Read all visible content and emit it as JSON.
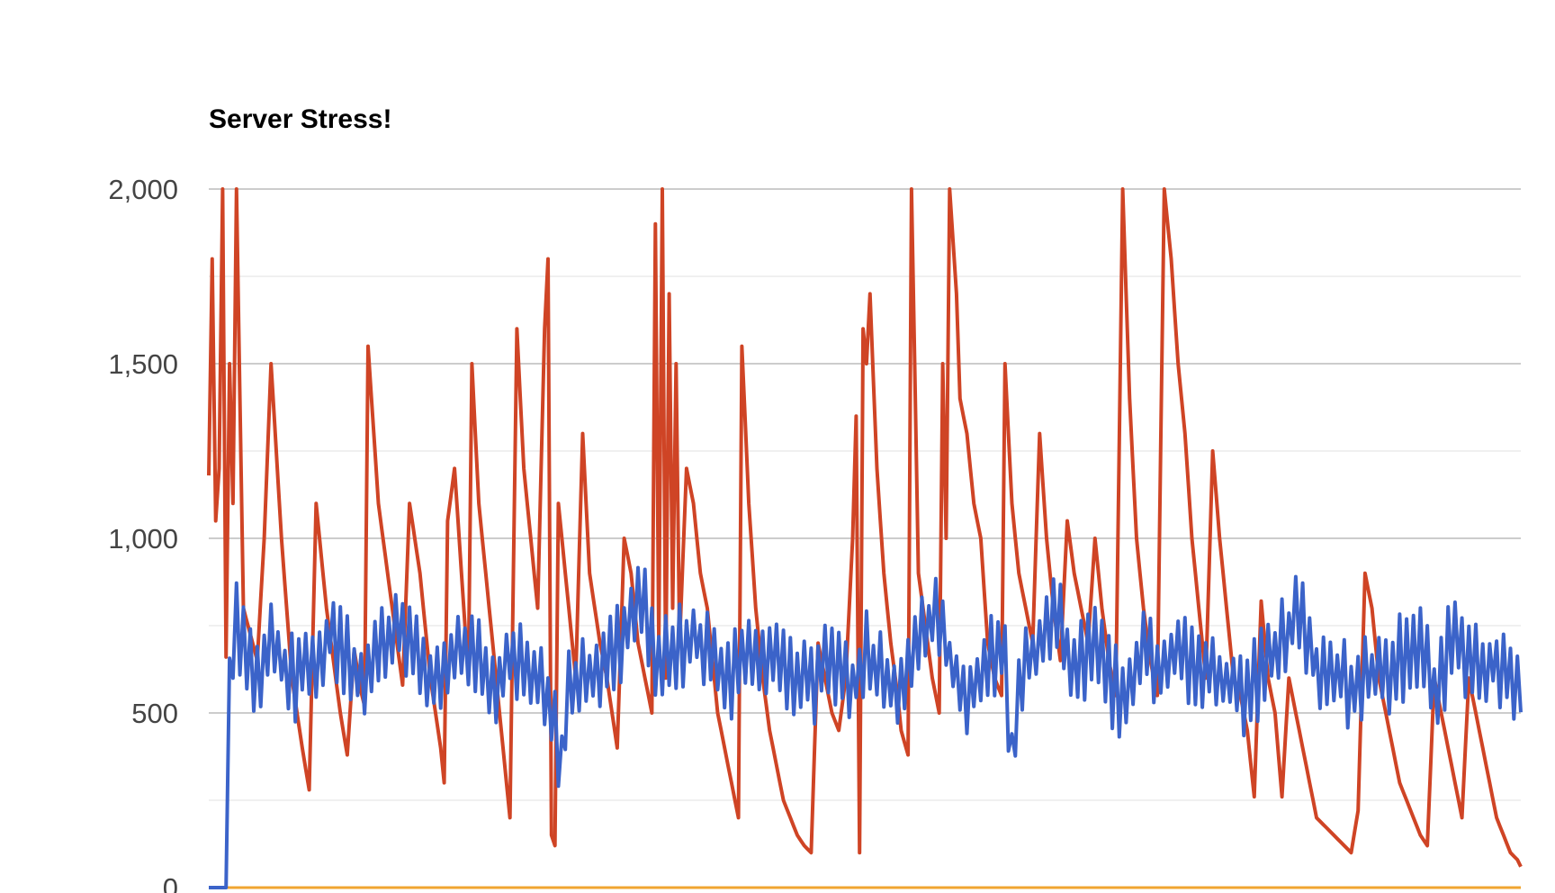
{
  "chart_data": {
    "type": "line",
    "title": "Server Stress!",
    "xlabel": "",
    "ylabel": "",
    "ylim": [
      0,
      2000
    ],
    "y_ticks": [
      "0",
      "500",
      "1,000",
      "1,500",
      "2,000"
    ],
    "y_tick_values": [
      0,
      500,
      1000,
      1500,
      2000
    ],
    "grid": true,
    "legend": "none",
    "x_count": 380,
    "series": [
      {
        "color": "#3b63c9",
        "keypoints": [
          [
            0,
            0
          ],
          [
            5,
            0
          ],
          [
            6,
            560
          ],
          [
            8,
            780
          ],
          [
            12,
            620
          ],
          [
            18,
            680
          ],
          [
            25,
            590
          ],
          [
            35,
            720
          ],
          [
            45,
            600
          ],
          [
            55,
            760
          ],
          [
            65,
            580
          ],
          [
            75,
            700
          ],
          [
            82,
            560
          ],
          [
            88,
            660
          ],
          [
            95,
            600
          ],
          [
            100,
            440
          ],
          [
            102,
            350
          ],
          [
            104,
            560
          ],
          [
            110,
            620
          ],
          [
            118,
            700
          ],
          [
            125,
            820
          ],
          [
            130,
            640
          ],
          [
            140,
            720
          ],
          [
            150,
            600
          ],
          [
            160,
            680
          ],
          [
            170,
            620
          ],
          [
            175,
            580
          ],
          [
            180,
            660
          ],
          [
            185,
            560
          ],
          [
            190,
            680
          ],
          [
            195,
            600
          ],
          [
            200,
            560
          ],
          [
            205,
            680
          ],
          [
            210,
            780
          ],
          [
            215,
            620
          ],
          [
            220,
            560
          ],
          [
            225,
            640
          ],
          [
            230,
            680
          ],
          [
            232,
            330
          ],
          [
            234,
            600
          ],
          [
            240,
            700
          ],
          [
            245,
            780
          ],
          [
            250,
            620
          ],
          [
            255,
            700
          ],
          [
            260,
            600
          ],
          [
            265,
            520
          ],
          [
            270,
            660
          ],
          [
            275,
            640
          ],
          [
            280,
            700
          ],
          [
            285,
            600
          ],
          [
            290,
            620
          ],
          [
            300,
            560
          ],
          [
            310,
            700
          ],
          [
            315,
            800
          ],
          [
            320,
            620
          ],
          [
            330,
            580
          ],
          [
            340,
            620
          ],
          [
            350,
            700
          ],
          [
            355,
            540
          ],
          [
            360,
            760
          ],
          [
            365,
            620
          ],
          [
            370,
            650
          ],
          [
            375,
            600
          ],
          [
            379,
            560
          ]
        ],
        "jitter": 110
      },
      {
        "color": "#cf4425",
        "keypoints": [
          [
            0,
            1180
          ],
          [
            1,
            1800
          ],
          [
            2,
            1050
          ],
          [
            3,
            1200
          ],
          [
            4,
            2000
          ],
          [
            5,
            660
          ],
          [
            6,
            1500
          ],
          [
            7,
            1100
          ],
          [
            8,
            2000
          ],
          [
            10,
            800
          ],
          [
            14,
            650
          ],
          [
            16,
            1000
          ],
          [
            18,
            1500
          ],
          [
            21,
            1000
          ],
          [
            24,
            600
          ],
          [
            27,
            400
          ],
          [
            29,
            280
          ],
          [
            31,
            1100
          ],
          [
            34,
            800
          ],
          [
            38,
            500
          ],
          [
            40,
            380
          ],
          [
            42,
            680
          ],
          [
            44,
            560
          ],
          [
            45,
            520
          ],
          [
            46,
            1550
          ],
          [
            49,
            1100
          ],
          [
            53,
            800
          ],
          [
            56,
            580
          ],
          [
            58,
            1100
          ],
          [
            61,
            900
          ],
          [
            64,
            600
          ],
          [
            67,
            400
          ],
          [
            68,
            300
          ],
          [
            69,
            1050
          ],
          [
            71,
            1200
          ],
          [
            73,
            900
          ],
          [
            75,
            600
          ],
          [
            76,
            1500
          ],
          [
            78,
            1100
          ],
          [
            81,
            800
          ],
          [
            84,
            500
          ],
          [
            86,
            300
          ],
          [
            87,
            200
          ],
          [
            89,
            1600
          ],
          [
            91,
            1200
          ],
          [
            93,
            1000
          ],
          [
            95,
            800
          ],
          [
            97,
            1600
          ],
          [
            98,
            1800
          ],
          [
            99,
            150
          ],
          [
            100,
            120
          ],
          [
            101,
            1100
          ],
          [
            103,
            900
          ],
          [
            106,
            600
          ],
          [
            108,
            1300
          ],
          [
            110,
            900
          ],
          [
            113,
            700
          ],
          [
            115,
            600
          ],
          [
            118,
            400
          ],
          [
            120,
            1000
          ],
          [
            122,
            900
          ],
          [
            124,
            700
          ],
          [
            126,
            600
          ],
          [
            128,
            500
          ],
          [
            129,
            1900
          ],
          [
            130,
            700
          ],
          [
            131,
            2000
          ],
          [
            132,
            600
          ],
          [
            133,
            1700
          ],
          [
            134,
            800
          ],
          [
            135,
            1500
          ],
          [
            136,
            700
          ],
          [
            138,
            1200
          ],
          [
            140,
            1100
          ],
          [
            142,
            900
          ],
          [
            144,
            800
          ],
          [
            145,
            700
          ],
          [
            147,
            500
          ],
          [
            149,
            400
          ],
          [
            151,
            300
          ],
          [
            153,
            200
          ],
          [
            154,
            1550
          ],
          [
            156,
            1100
          ],
          [
            158,
            800
          ],
          [
            160,
            600
          ],
          [
            162,
            450
          ],
          [
            164,
            350
          ],
          [
            166,
            250
          ],
          [
            168,
            200
          ],
          [
            170,
            150
          ],
          [
            172,
            120
          ],
          [
            174,
            100
          ],
          [
            176,
            700
          ],
          [
            178,
            600
          ],
          [
            180,
            500
          ],
          [
            182,
            450
          ],
          [
            184,
            600
          ],
          [
            186,
            1000
          ],
          [
            187,
            1350
          ],
          [
            188,
            100
          ],
          [
            189,
            1600
          ],
          [
            190,
            1500
          ],
          [
            191,
            1700
          ],
          [
            193,
            1200
          ],
          [
            195,
            900
          ],
          [
            197,
            700
          ],
          [
            199,
            550
          ],
          [
            200,
            450
          ],
          [
            202,
            380
          ],
          [
            203,
            2000
          ],
          [
            205,
            900
          ],
          [
            207,
            750
          ],
          [
            209,
            600
          ],
          [
            211,
            500
          ],
          [
            212,
            1500
          ],
          [
            213,
            1000
          ],
          [
            214,
            2000
          ],
          [
            216,
            1700
          ],
          [
            217,
            1400
          ],
          [
            219,
            1300
          ],
          [
            221,
            1100
          ],
          [
            223,
            1000
          ],
          [
            225,
            700
          ],
          [
            227,
            600
          ],
          [
            229,
            550
          ],
          [
            230,
            1500
          ],
          [
            232,
            1100
          ],
          [
            234,
            900
          ],
          [
            236,
            800
          ],
          [
            238,
            700
          ],
          [
            240,
            1300
          ],
          [
            242,
            1000
          ],
          [
            244,
            800
          ],
          [
            246,
            650
          ],
          [
            248,
            1050
          ],
          [
            250,
            900
          ],
          [
            252,
            800
          ],
          [
            254,
            700
          ],
          [
            256,
            1000
          ],
          [
            258,
            800
          ],
          [
            260,
            650
          ],
          [
            262,
            550
          ],
          [
            264,
            2000
          ],
          [
            266,
            1400
          ],
          [
            268,
            1000
          ],
          [
            270,
            800
          ],
          [
            272,
            650
          ],
          [
            274,
            550
          ],
          [
            276,
            2000
          ],
          [
            278,
            1800
          ],
          [
            280,
            1500
          ],
          [
            282,
            1300
          ],
          [
            284,
            1000
          ],
          [
            286,
            800
          ],
          [
            288,
            600
          ],
          [
            290,
            1250
          ],
          [
            292,
            1000
          ],
          [
            294,
            800
          ],
          [
            296,
            600
          ],
          [
            298,
            550
          ],
          [
            300,
            450
          ],
          [
            302,
            260
          ],
          [
            304,
            820
          ],
          [
            306,
            600
          ],
          [
            308,
            500
          ],
          [
            310,
            260
          ],
          [
            312,
            600
          ],
          [
            314,
            500
          ],
          [
            316,
            400
          ],
          [
            318,
            300
          ],
          [
            320,
            200
          ],
          [
            322,
            180
          ],
          [
            324,
            160
          ],
          [
            326,
            140
          ],
          [
            328,
            120
          ],
          [
            330,
            100
          ],
          [
            332,
            220
          ],
          [
            334,
            900
          ],
          [
            336,
            800
          ],
          [
            338,
            600
          ],
          [
            340,
            500
          ],
          [
            342,
            400
          ],
          [
            344,
            300
          ],
          [
            346,
            250
          ],
          [
            348,
            200
          ],
          [
            350,
            150
          ],
          [
            352,
            120
          ],
          [
            354,
            600
          ],
          [
            356,
            500
          ],
          [
            358,
            400
          ],
          [
            360,
            300
          ],
          [
            362,
            200
          ],
          [
            364,
            600
          ],
          [
            366,
            500
          ],
          [
            368,
            400
          ],
          [
            370,
            300
          ],
          [
            372,
            200
          ],
          [
            374,
            150
          ],
          [
            376,
            100
          ],
          [
            378,
            80
          ],
          [
            379,
            60
          ]
        ],
        "jitter": 0
      },
      {
        "color": "#f0a531",
        "keypoints": [
          [
            0,
            0
          ],
          [
            379,
            0
          ]
        ],
        "jitter": 0
      }
    ]
  }
}
